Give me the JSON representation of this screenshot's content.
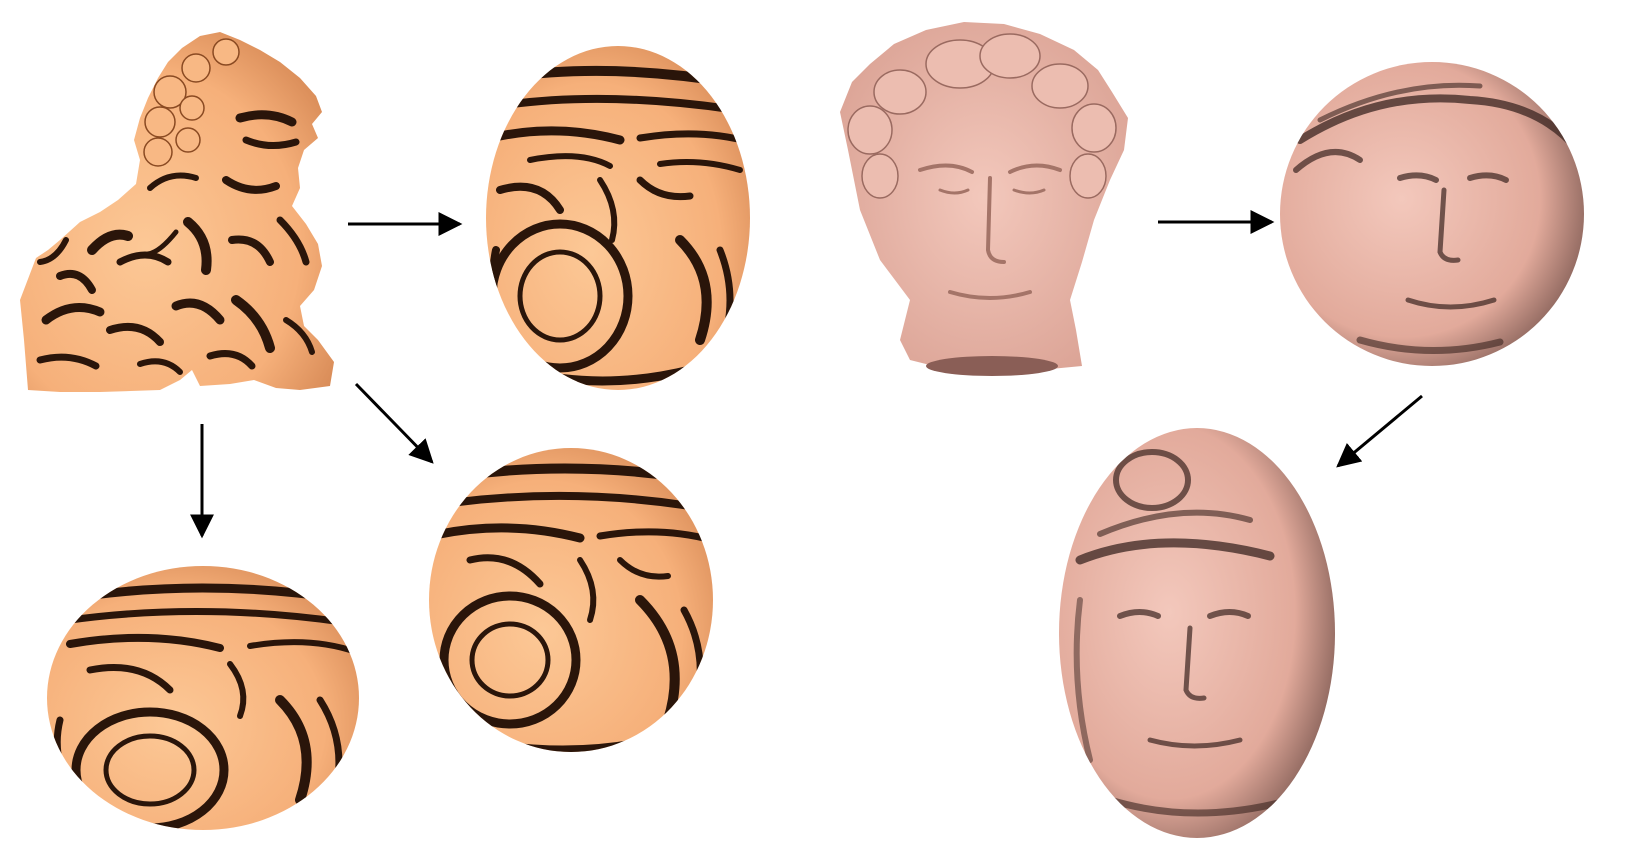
{
  "figure": {
    "background": "#ffffff",
    "colors": {
      "lion_base": "#f6b07a",
      "lion_light": "#fcc896",
      "lion_stripe": "#2a150a",
      "head_base": "#e8b2a4",
      "head_light": "#f3c8bc",
      "head_shade": "#3a2420",
      "arrow": "#000000"
    },
    "shapes": [
      {
        "name": "lion-statue",
        "kind": "lion",
        "texture": "stripes"
      },
      {
        "name": "lion-ellipsoid-tall",
        "kind": "ellipsoid",
        "texture": "stripes"
      },
      {
        "name": "lion-ellipsoid-wide",
        "kind": "ellipsoid",
        "texture": "stripes"
      },
      {
        "name": "lion-ellipsoid-round",
        "kind": "ellipsoid",
        "texture": "stripes"
      },
      {
        "name": "david-head",
        "kind": "head",
        "texture": "skin"
      },
      {
        "name": "head-sphere",
        "kind": "ellipsoid",
        "texture": "face"
      },
      {
        "name": "head-ellipsoid-tall",
        "kind": "ellipsoid",
        "texture": "face"
      }
    ],
    "arrows": [
      {
        "from": "lion-statue",
        "to": "lion-ellipsoid-tall",
        "direction": "right"
      },
      {
        "from": "lion-statue",
        "to": "lion-ellipsoid-wide",
        "direction": "down"
      },
      {
        "from": "lion-statue",
        "to": "lion-ellipsoid-round",
        "direction": "down-right"
      },
      {
        "from": "david-head",
        "to": "head-sphere",
        "direction": "right"
      },
      {
        "from": "head-sphere",
        "to": "head-ellipsoid-tall",
        "direction": "down-left"
      }
    ]
  }
}
